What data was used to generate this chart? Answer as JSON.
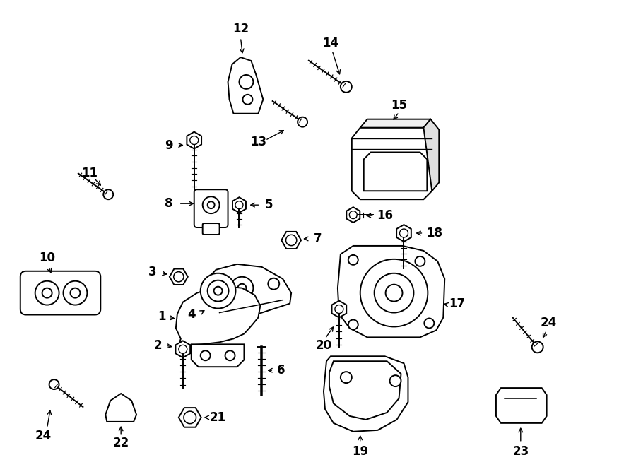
{
  "bg_color": "#ffffff",
  "line_color": "#000000",
  "figsize": [
    9.0,
    6.61
  ],
  "dpi": 100,
  "font_size": 12,
  "line_width": 1.4
}
